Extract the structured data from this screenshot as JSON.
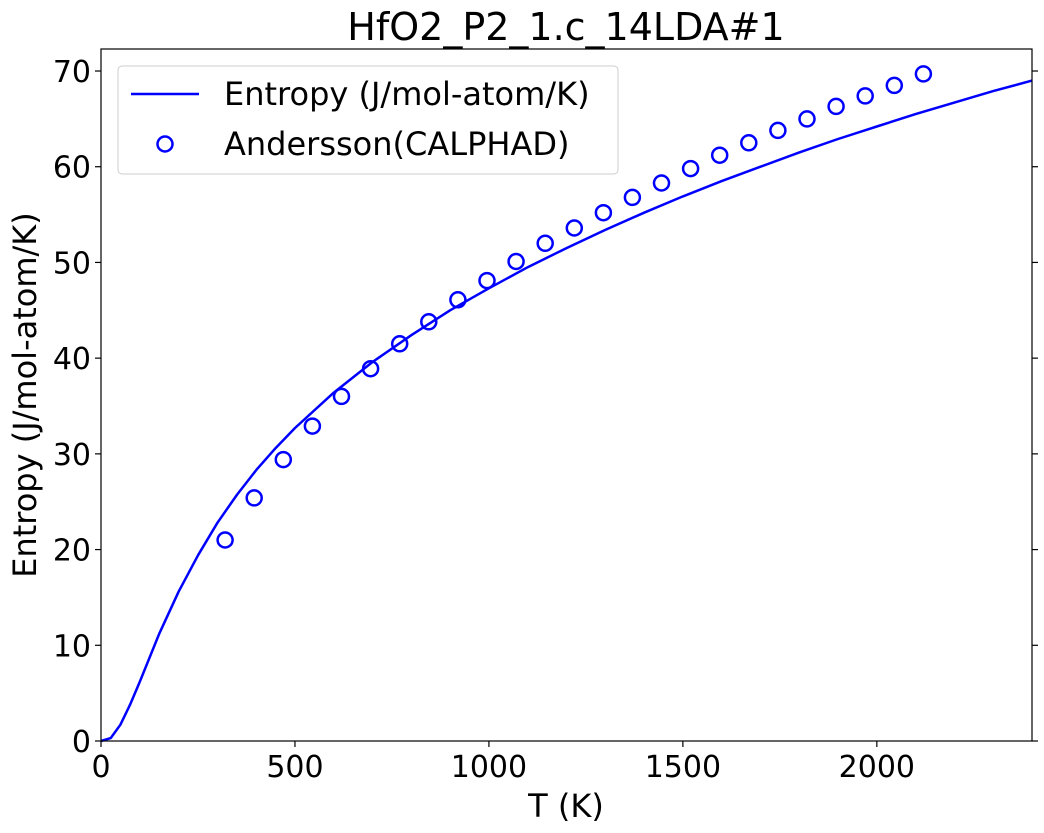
{
  "chart_data": {
    "type": "line",
    "title": "HfO2_P2_1.c_14LDA#1",
    "xlabel": "T (K)",
    "ylabel": "Entropy (J/mol-atom/K)",
    "xlim": [
      0,
      2400
    ],
    "ylim": [
      0,
      72.3
    ],
    "xticks": [
      0,
      500,
      1000,
      1500,
      2000
    ],
    "yticks": [
      0,
      10,
      20,
      30,
      40,
      50,
      60,
      70
    ],
    "grid": false,
    "legend_position": "top-left",
    "colors": {
      "series": "#0000ff"
    },
    "series": [
      {
        "name": "Entropy (J/mol-atom/K)",
        "style": "line",
        "x": [
          0,
          25,
          50,
          75,
          100,
          150,
          200,
          250,
          300,
          350,
          400,
          450,
          500,
          600,
          700,
          800,
          900,
          1000,
          1100,
          1200,
          1300,
          1400,
          1500,
          1600,
          1700,
          1800,
          1900,
          2000,
          2100,
          2200,
          2300,
          2400
        ],
        "y": [
          0,
          0.3,
          1.7,
          3.8,
          6.2,
          11.2,
          15.6,
          19.4,
          22.8,
          25.7,
          28.3,
          30.6,
          32.7,
          36.4,
          39.6,
          42.4,
          45.0,
          47.3,
          49.5,
          51.5,
          53.4,
          55.2,
          56.9,
          58.5,
          60.0,
          61.5,
          62.9,
          64.2,
          65.5,
          66.7,
          67.9,
          69.0
        ]
      },
      {
        "name": "Andersson(CALPHAD)",
        "style": "open-circle",
        "x": [
          320,
          395,
          470,
          545,
          620,
          695,
          770,
          845,
          920,
          995,
          1070,
          1145,
          1220,
          1295,
          1370,
          1445,
          1520,
          1595,
          1670,
          1745,
          1820,
          1895,
          1970,
          2045,
          2120
        ],
        "y": [
          21.0,
          25.4,
          29.4,
          32.9,
          36.0,
          38.9,
          41.5,
          43.8,
          46.1,
          48.1,
          50.1,
          52.0,
          53.6,
          55.2,
          56.8,
          58.3,
          59.8,
          61.2,
          62.5,
          63.8,
          65.0,
          66.3,
          67.4,
          68.5,
          69.7
        ]
      }
    ]
  }
}
